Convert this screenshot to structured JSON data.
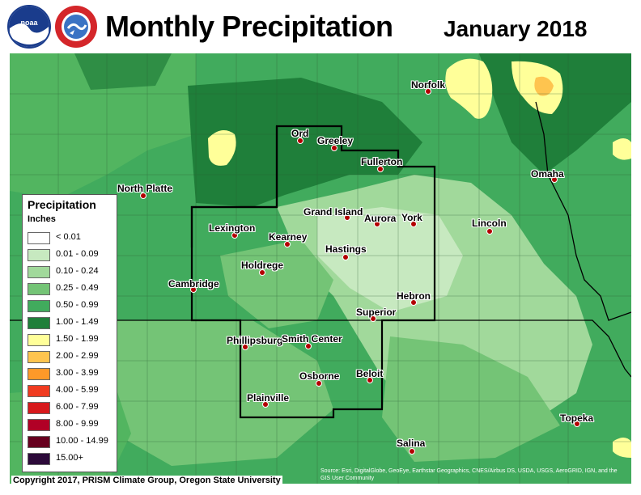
{
  "header": {
    "title": "Monthly Precipitation",
    "subtitle": "January 2018",
    "logos": [
      "noaa-logo",
      "national-weather-service-logo"
    ]
  },
  "legend": {
    "title": "Precipitation",
    "units": "Inches",
    "entries": [
      {
        "label": "< 0.01",
        "color": "#ffffff"
      },
      {
        "label": "0.01 - 0.09",
        "color": "#c7e9c0"
      },
      {
        "label": "0.10 - 0.24",
        "color": "#a1d99b"
      },
      {
        "label": "0.25 - 0.49",
        "color": "#74c476"
      },
      {
        "label": "0.50 - 0.99",
        "color": "#41ab5d"
      },
      {
        "label": "1.00 - 1.49",
        "color": "#1f7f3a"
      },
      {
        "label": "1.50 - 1.99",
        "color": "#ffff99"
      },
      {
        "label": "2.00 - 2.99",
        "color": "#fec44f"
      },
      {
        "label": "3.00 - 3.99",
        "color": "#fe9929"
      },
      {
        "label": "4.00 - 5.99",
        "color": "#f03b20"
      },
      {
        "label": "6.00 - 7.99",
        "color": "#d7191c"
      },
      {
        "label": "8.00 - 9.99",
        "color": "#b10026"
      },
      {
        "label": "10.00 - 14.99",
        "color": "#67001f"
      },
      {
        "label": "15.00+",
        "color": "#2d0a3a"
      }
    ]
  },
  "cities": [
    {
      "name": "Norfolk"
    },
    {
      "name": "Ord"
    },
    {
      "name": "Greeley"
    },
    {
      "name": "Fullerton"
    },
    {
      "name": "Omaha"
    },
    {
      "name": "North Platte"
    },
    {
      "name": "Grand Island"
    },
    {
      "name": "Aurora"
    },
    {
      "name": "York"
    },
    {
      "name": "Lincoln"
    },
    {
      "name": "Lexington"
    },
    {
      "name": "Kearney"
    },
    {
      "name": "Hastings"
    },
    {
      "name": "Holdrege"
    },
    {
      "name": "Cambridge"
    },
    {
      "name": "Hebron"
    },
    {
      "name": "Superior"
    },
    {
      "name": "Phillipsburg"
    },
    {
      "name": "Smith Center"
    },
    {
      "name": "Osborne"
    },
    {
      "name": "Beloit"
    },
    {
      "name": "Plainville"
    },
    {
      "name": "Topeka"
    },
    {
      "name": "Salina"
    }
  ],
  "footer": {
    "copyright": "Copyright 2017, PRISM Climate Group, Oregon State University",
    "source": "Source: Esri, DigitalGlobe, GeoEye, Earthstar Geographics, CNES/Airbus DS, USDA, USGS, AeroGRID, IGN, and the GIS User Community"
  },
  "colors": {
    "city_dot": "#b30000",
    "border": "#000000",
    "county_line": "#555555"
  }
}
